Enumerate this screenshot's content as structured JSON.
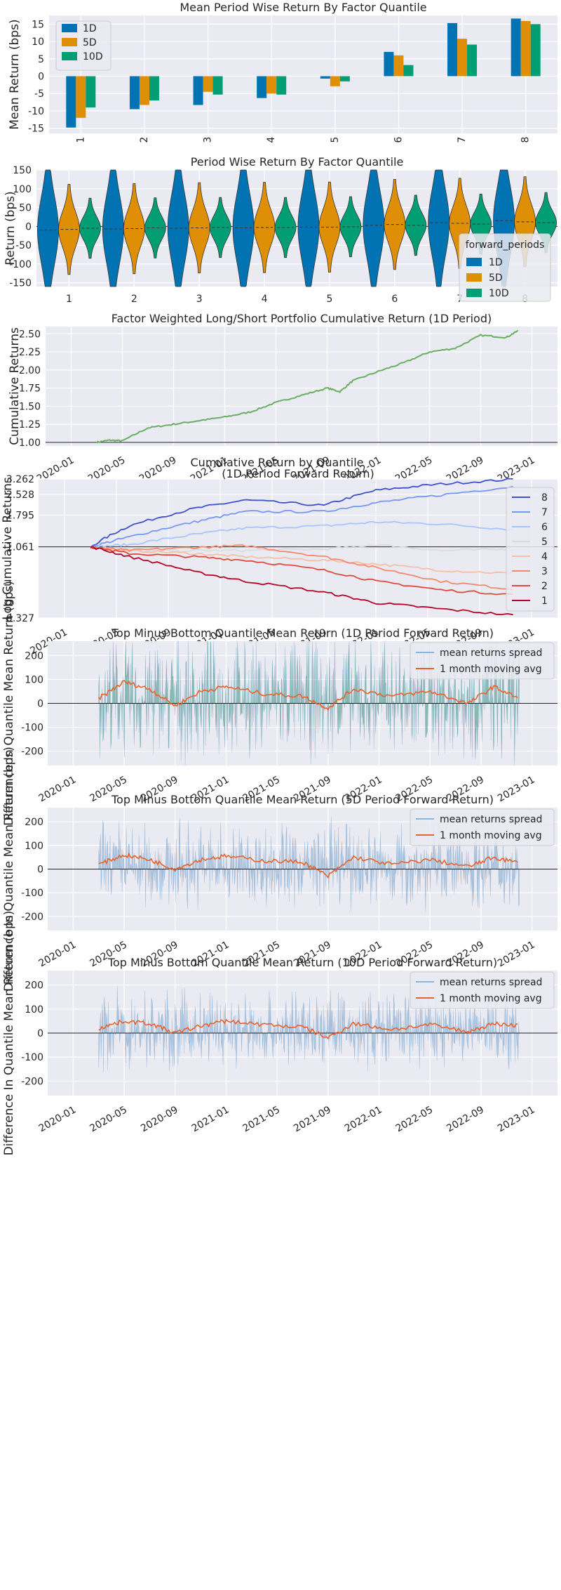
{
  "colors": {
    "1D": "#0173b2",
    "5D": "#de8f05",
    "10D": "#029e73"
  },
  "quantile_colors": {
    "1": "#b40426",
    "2": "#dd4b3a",
    "3": "#f5896a",
    "4": "#f6bfa6",
    "5": "#d7dce3",
    "6": "#a8c5fd",
    "7": "#7597f6",
    "8": "#3e51cf"
  },
  "chart_data": [
    {
      "type": "bar",
      "title": "Mean Period Wise Return By Factor Quantile",
      "xlabel": "",
      "ylabel": "Mean Return (bps)",
      "categories": [
        "1",
        "2",
        "3",
        "4",
        "5",
        "6",
        "7",
        "8"
      ],
      "ylim": [
        -16.5,
        17.5
      ],
      "yticks": [
        -15,
        -10,
        -5,
        0,
        5,
        10,
        15
      ],
      "legend": "top-left",
      "series": [
        {
          "name": "1D",
          "values": [
            -14.8,
            -9.5,
            -8.3,
            -6.3,
            -0.7,
            7.0,
            15.3,
            16.6
          ]
        },
        {
          "name": "5D",
          "values": [
            -12.0,
            -8.3,
            -4.5,
            -5.0,
            -2.9,
            6.0,
            10.8,
            15.9
          ]
        },
        {
          "name": "10D",
          "values": [
            -9.0,
            -7.0,
            -5.3,
            -5.3,
            -1.5,
            3.2,
            9.1,
            15.0
          ]
        }
      ]
    },
    {
      "type": "violin",
      "title": "Period Wise Return By Factor Quantile",
      "xlabel": "",
      "ylabel": "Return (bps)",
      "categories": [
        "1",
        "2",
        "3",
        "4",
        "5",
        "6",
        "7",
        "8"
      ],
      "ylim": [
        -160,
        150
      ],
      "yticks": [
        -150,
        -100,
        -50,
        0,
        50,
        100,
        150
      ],
      "legend_title": "forward_periods",
      "legend": "lower-right",
      "series": [
        {
          "name": "1D",
          "medians": [
            -10,
            -7,
            -5,
            -4,
            -2,
            3,
            10,
            15
          ]
        },
        {
          "name": "5D",
          "medians": [
            -8,
            -6,
            -4,
            -3,
            -2,
            5,
            8,
            12
          ]
        },
        {
          "name": "10D",
          "medians": [
            -5,
            -4,
            -3,
            -3,
            -1,
            3,
            6,
            10
          ]
        }
      ]
    },
    {
      "type": "line",
      "title": "Factor Weighted Long/Short Portfolio Cumulative Return (1D Period)",
      "xlabel": "",
      "ylabel": "Cumulative Returns",
      "ylim": [
        0.95,
        2.6
      ],
      "yticks": [
        "1.00",
        "1.25",
        "1.50",
        "1.75",
        "2.00",
        "2.25",
        "2.50"
      ],
      "xticks": [
        "2020-01",
        "2020-05",
        "2020-09",
        "2021-01",
        "2021-05",
        "2021-09",
        "2022-01",
        "2022-05",
        "2022-09",
        "2023-01"
      ],
      "series": [
        {
          "name": "",
          "color": "#6aaf61",
          "x": [
            "2020-03",
            "2020-04",
            "2020-05",
            "2020-07",
            "2020-09",
            "2020-11",
            "2021-01",
            "2021-03",
            "2021-05",
            "2021-07",
            "2021-09",
            "2021-10",
            "2021-11",
            "2022-01",
            "2022-03",
            "2022-05",
            "2022-07",
            "2022-09",
            "2022-11",
            "2022-12"
          ],
          "y": [
            1.0,
            1.03,
            1.02,
            1.2,
            1.25,
            1.3,
            1.35,
            1.42,
            1.55,
            1.65,
            1.75,
            1.7,
            1.85,
            1.98,
            2.1,
            2.25,
            2.3,
            2.48,
            2.45,
            2.55
          ]
        }
      ]
    },
    {
      "type": "line",
      "title": "Cumulative Return by Quantile",
      "subtitle": "(1D Period Forward Return)",
      "xlabel": "",
      "ylabel": "Log Cumulative Returns",
      "yscale": "log",
      "yticks": [
        "0.327",
        "1.061",
        "1.795",
        "2.528",
        "3.262"
      ],
      "xticks": [
        "2020-01",
        "2020-05",
        "2020-09",
        "2021-01",
        "2021-05",
        "2021-09",
        "2022-01",
        "2022-05",
        "2022-09",
        "2023-01"
      ],
      "legend": "right",
      "series": [
        {
          "name": "8",
          "x": [
            "2020-03",
            "2020-06",
            "2020-11",
            "2021-03",
            "2021-09",
            "2022-01",
            "2022-06",
            "2022-12"
          ],
          "y": [
            1.06,
            1.5,
            2.0,
            2.3,
            2.1,
            2.7,
            3.0,
            3.26
          ]
        },
        {
          "name": "7",
          "x": [
            "2020-03",
            "2020-06",
            "2020-11",
            "2021-03",
            "2021-09",
            "2022-01",
            "2022-06",
            "2022-12"
          ],
          "y": [
            1.06,
            1.25,
            1.6,
            1.9,
            1.9,
            2.2,
            2.5,
            2.9
          ]
        },
        {
          "name": "6",
          "x": [
            "2020-03",
            "2020-06",
            "2020-11",
            "2021-03",
            "2021-09",
            "2022-01",
            "2022-06",
            "2022-12"
          ],
          "y": [
            1.06,
            1.1,
            1.3,
            1.45,
            1.5,
            1.6,
            1.55,
            1.4
          ]
        },
        {
          "name": "5",
          "x": [
            "2020-03",
            "2020-06",
            "2020-11",
            "2021-03",
            "2021-09",
            "2022-01",
            "2022-06",
            "2022-12"
          ],
          "y": [
            1.06,
            0.98,
            1.0,
            1.0,
            1.02,
            1.1,
            1.0,
            1.02
          ]
        },
        {
          "name": "4",
          "x": [
            "2020-03",
            "2020-06",
            "2020-11",
            "2021-03",
            "2021-09",
            "2022-01",
            "2022-06",
            "2022-12"
          ],
          "y": [
            1.06,
            1.0,
            0.95,
            0.9,
            0.85,
            0.8,
            0.72,
            0.68
          ]
        },
        {
          "name": "3",
          "x": [
            "2020-03",
            "2020-06",
            "2020-11",
            "2021-03",
            "2021-09",
            "2022-01",
            "2022-06",
            "2022-12"
          ],
          "y": [
            1.06,
            1.0,
            1.05,
            1.08,
            0.9,
            0.75,
            0.6,
            0.52
          ]
        },
        {
          "name": "2",
          "x": [
            "2020-03",
            "2020-06",
            "2020-11",
            "2021-03",
            "2021-09",
            "2022-01",
            "2022-06",
            "2022-12"
          ],
          "y": [
            1.06,
            0.95,
            0.9,
            0.85,
            0.72,
            0.6,
            0.52,
            0.48
          ]
        },
        {
          "name": "1",
          "x": [
            "2020-03",
            "2020-06",
            "2020-11",
            "2021-03",
            "2021-09",
            "2022-01",
            "2022-06",
            "2022-12"
          ],
          "y": [
            1.06,
            0.9,
            0.7,
            0.6,
            0.5,
            0.42,
            0.38,
            0.34
          ]
        }
      ]
    },
    {
      "type": "area",
      "title": "Top Minus Bottom Quantile Mean Return (1D Period Forward Return)",
      "xlabel": "",
      "ylabel": "Difference In Quantile Mean Return (bps)",
      "ylim": [
        -260,
        260
      ],
      "yticks": [
        -200,
        -100,
        0,
        100,
        200
      ],
      "xticks": [
        "2020-01",
        "2020-05",
        "2020-09",
        "2021-01",
        "2021-05",
        "2021-09",
        "2022-01",
        "2022-05",
        "2022-09",
        "2023-01"
      ],
      "legend": "top-right",
      "series": [
        {
          "name": "mean returns spread",
          "amplitude": 260
        },
        {
          "name": "1 month moving avg",
          "x": [
            "2020-03",
            "2020-05",
            "2020-07",
            "2020-09",
            "2020-11",
            "2021-01",
            "2021-04",
            "2021-07",
            "2021-09",
            "2021-11",
            "2022-02",
            "2022-05",
            "2022-08",
            "2022-10",
            "2022-12"
          ],
          "y": [
            20,
            90,
            60,
            -10,
            50,
            70,
            40,
            30,
            -20,
            60,
            30,
            50,
            0,
            70,
            20
          ]
        }
      ]
    },
    {
      "type": "area",
      "title": "Top Minus Bottom Quantile Mean Return (5D Period Forward Return)",
      "xlabel": "",
      "ylabel": "Difference In Quantile Mean Return (bps)",
      "ylim": [
        -260,
        260
      ],
      "yticks": [
        -200,
        -100,
        0,
        100,
        200
      ],
      "xticks": [
        "2020-01",
        "2020-05",
        "2020-09",
        "2021-01",
        "2021-05",
        "2021-09",
        "2022-01",
        "2022-05",
        "2022-09",
        "2023-01"
      ],
      "legend": "top-right",
      "series": [
        {
          "name": "mean returns spread",
          "amplitude": 180
        },
        {
          "name": "1 month moving avg",
          "x": [
            "2020-03",
            "2020-05",
            "2020-07",
            "2020-09",
            "2020-11",
            "2021-01",
            "2021-04",
            "2021-07",
            "2021-09",
            "2021-11",
            "2022-02",
            "2022-05",
            "2022-08",
            "2022-10",
            "2022-12"
          ],
          "y": [
            20,
            60,
            40,
            0,
            40,
            55,
            35,
            30,
            -30,
            50,
            20,
            40,
            10,
            50,
            25
          ]
        }
      ]
    },
    {
      "type": "area",
      "title": "Top Minus Bottom Quantile Mean Return (10D Period Forward Return)",
      "xlabel": "",
      "ylabel": "Difference In Quantile Mean Return (bps)",
      "ylim": [
        -260,
        260
      ],
      "yticks": [
        -200,
        -100,
        0,
        100,
        200
      ],
      "xticks": [
        "2020-01",
        "2020-05",
        "2020-09",
        "2021-01",
        "2021-05",
        "2021-09",
        "2022-01",
        "2022-05",
        "2022-09",
        "2023-01"
      ],
      "legend": "top-right",
      "series": [
        {
          "name": "mean returns spread",
          "amplitude": 160
        },
        {
          "name": "1 month moving avg",
          "x": [
            "2020-03",
            "2020-05",
            "2020-07",
            "2020-09",
            "2020-11",
            "2021-01",
            "2021-04",
            "2021-07",
            "2021-09",
            "2021-11",
            "2022-02",
            "2022-05",
            "2022-08",
            "2022-10",
            "2022-12"
          ],
          "y": [
            20,
            50,
            40,
            0,
            30,
            50,
            35,
            25,
            -20,
            40,
            15,
            35,
            5,
            40,
            30
          ]
        }
      ]
    }
  ]
}
